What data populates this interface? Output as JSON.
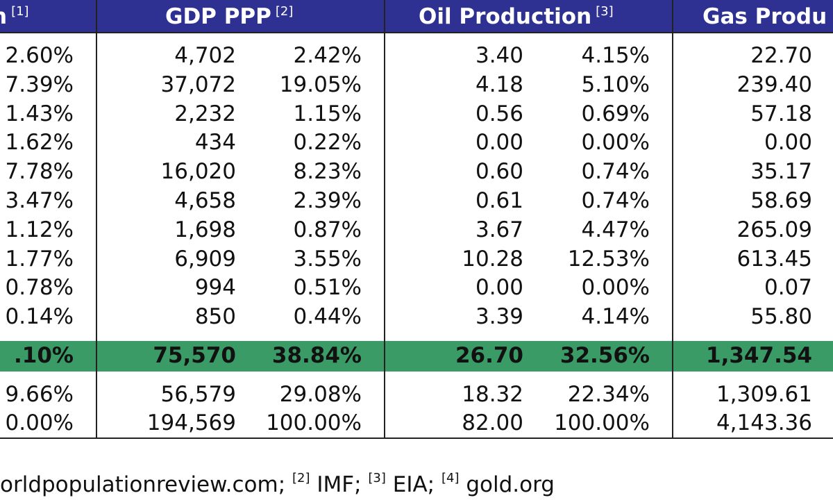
{
  "headers": [
    {
      "title": "n",
      "note": "[1]"
    },
    {
      "title": "GDP PPP",
      "note": "[2]"
    },
    {
      "title": "Oil Production",
      "note": "[3]"
    },
    {
      "title": "Gas Produ",
      "note": ""
    }
  ],
  "rows": [
    [
      "2.60%",
      "4,702",
      "2.42%",
      "3.40",
      "4.15%",
      "22.70"
    ],
    [
      "7.39%",
      "37,072",
      "19.05%",
      "4.18",
      "5.10%",
      "239.40"
    ],
    [
      "1.43%",
      "2,232",
      "1.15%",
      "0.56",
      "0.69%",
      "57.18"
    ],
    [
      "1.62%",
      "434",
      "0.22%",
      "0.00",
      "0.00%",
      "0.00"
    ],
    [
      "7.78%",
      "16,020",
      "8.23%",
      "0.60",
      "0.74%",
      "35.17"
    ],
    [
      "3.47%",
      "4,658",
      "2.39%",
      "0.61",
      "0.74%",
      "58.69"
    ],
    [
      "1.12%",
      "1,698",
      "0.87%",
      "3.67",
      "4.47%",
      "265.09"
    ],
    [
      "1.77%",
      "6,909",
      "3.55%",
      "10.28",
      "12.53%",
      "613.45"
    ],
    [
      "0.78%",
      "994",
      "0.51%",
      "0.00",
      "0.00%",
      "0.07"
    ],
    [
      "0.14%",
      "850",
      "0.44%",
      "3.39",
      "4.14%",
      "55.80"
    ]
  ],
  "total_row": [
    ".10%",
    "75,570",
    "38.84%",
    "26.70",
    "32.56%",
    "1,347.54"
  ],
  "extra_rows": [
    [
      "9.66%",
      "56,579",
      "29.08%",
      "18.32",
      "22.34%",
      "1,309.61"
    ],
    [
      "0.00%",
      "194,569",
      "100.00%",
      "82.00",
      "100.00%",
      "4,143.36"
    ]
  ],
  "footnote": {
    "text1": "orldpopulationreview.com; ",
    "note2": "[2]",
    "text2": " IMF; ",
    "note3": "[3]",
    "text3": " EIA; ",
    "note4": "[4]",
    "text4": " gold.org"
  },
  "colors": {
    "header_bg": "#2e3191",
    "total_bg": "#3a9b66"
  }
}
